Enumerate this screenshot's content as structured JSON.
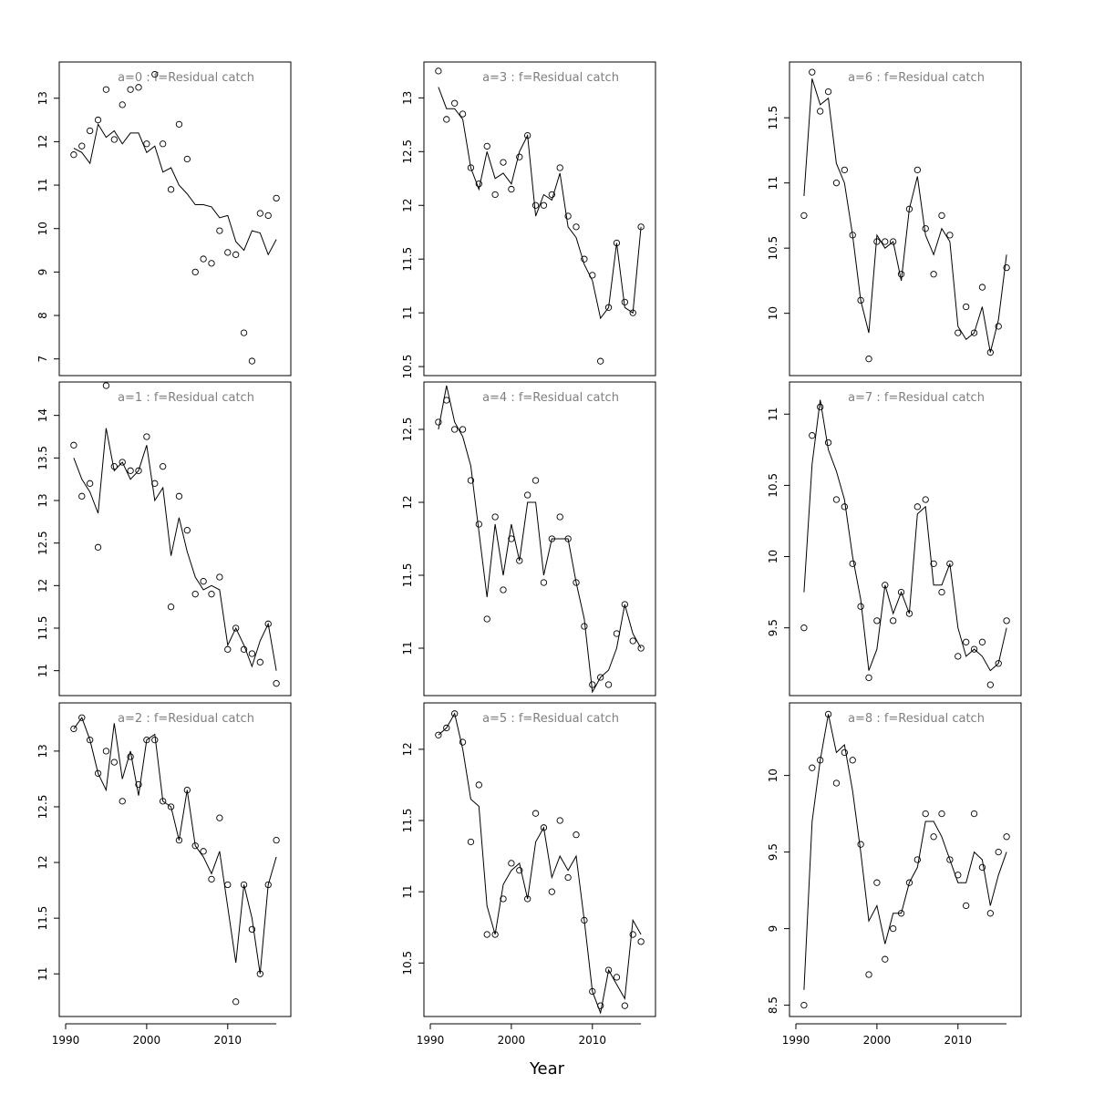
{
  "figure": {
    "xlabel": "Year"
  },
  "chart_data": [
    {
      "type": "line",
      "title": "a=0  :  f=Residual catch",
      "x": [
        1991,
        1992,
        1993,
        1994,
        1995,
        1996,
        1997,
        1998,
        1999,
        2000,
        2001,
        2002,
        2003,
        2004,
        2005,
        2006,
        2007,
        2008,
        2009,
        2010,
        2011,
        2012,
        2013,
        2014,
        2015,
        2016
      ],
      "series": [
        {
          "kind": "line",
          "values": [
            11.85,
            11.75,
            11.5,
            12.4,
            12.1,
            12.25,
            11.95,
            12.2,
            12.2,
            11.75,
            11.9,
            11.3,
            11.4,
            11.0,
            10.8,
            10.55,
            10.55,
            10.5,
            10.25,
            10.3,
            9.7,
            9.5,
            9.95,
            9.9,
            9.4,
            9.75
          ]
        },
        {
          "kind": "points",
          "values": [
            11.7,
            11.9,
            12.25,
            12.5,
            13.2,
            12.05,
            12.85,
            13.2,
            13.25,
            11.95,
            13.55,
            11.95,
            10.9,
            12.4,
            11.6,
            9.0,
            9.3,
            9.2,
            9.95,
            9.45,
            9.4,
            7.6,
            6.95,
            10.35,
            10.3,
            10.7
          ]
        }
      ],
      "ylim": [
        6.7,
        13.75
      ],
      "yticks": [
        7,
        8,
        9,
        10,
        11,
        12,
        13
      ]
    },
    {
      "type": "line",
      "title": "a=1  :  f=Residual catch",
      "x": [
        1991,
        1992,
        1993,
        1994,
        1995,
        1996,
        1997,
        1998,
        1999,
        2000,
        2001,
        2002,
        2003,
        2004,
        2005,
        2006,
        2007,
        2008,
        2009,
        2010,
        2011,
        2012,
        2013,
        2014,
        2015,
        2016
      ],
      "series": [
        {
          "kind": "line",
          "values": [
            13.5,
            13.25,
            13.1,
            12.85,
            13.85,
            13.35,
            13.45,
            13.25,
            13.35,
            13.65,
            13.0,
            13.15,
            12.35,
            12.8,
            12.4,
            12.1,
            11.95,
            12.0,
            11.95,
            11.3,
            11.5,
            11.3,
            11.05,
            11.35,
            11.55,
            11.0
          ]
        },
        {
          "kind": "points",
          "values": [
            13.65,
            13.05,
            13.2,
            12.45,
            14.35,
            13.4,
            13.45,
            13.35,
            13.35,
            13.75,
            13.2,
            13.4,
            11.75,
            13.05,
            12.65,
            11.9,
            12.05,
            11.9,
            12.1,
            11.25,
            11.5,
            11.25,
            11.2,
            11.1,
            11.55,
            10.85
          ]
        }
      ],
      "ylim": [
        10.75,
        14.35
      ],
      "yticks": [
        11.0,
        11.5,
        12.0,
        12.5,
        13.0,
        13.5,
        14.0
      ]
    },
    {
      "type": "line",
      "title": "a=2  :  f=Residual catch",
      "x": [
        1991,
        1992,
        1993,
        1994,
        1995,
        1996,
        1997,
        1998,
        1999,
        2000,
        2001,
        2002,
        2003,
        2004,
        2005,
        2006,
        2007,
        2008,
        2009,
        2010,
        2011,
        2012,
        2013,
        2014,
        2015,
        2016
      ],
      "series": [
        {
          "kind": "line",
          "values": [
            13.2,
            13.3,
            13.1,
            12.8,
            12.65,
            13.25,
            12.75,
            13.0,
            12.6,
            13.1,
            13.15,
            12.55,
            12.5,
            12.2,
            12.65,
            12.15,
            12.05,
            11.9,
            12.1,
            11.6,
            11.1,
            11.8,
            11.5,
            11.0,
            11.8,
            12.05
          ]
        },
        {
          "kind": "points",
          "values": [
            13.2,
            13.3,
            13.1,
            12.8,
            13.0,
            12.9,
            12.55,
            12.95,
            12.7,
            13.1,
            13.1,
            12.55,
            12.5,
            12.2,
            12.65,
            12.15,
            12.1,
            11.85,
            12.4,
            11.8,
            10.75,
            11.8,
            11.4,
            11.0,
            11.8,
            12.2
          ]
        }
      ],
      "ylim": [
        10.65,
        13.4
      ],
      "yticks": [
        11.0,
        11.5,
        12.0,
        12.5,
        13.0
      ]
    },
    {
      "type": "line",
      "title": "a=3  :  f=Residual catch",
      "x": [
        1991,
        1992,
        1993,
        1994,
        1995,
        1996,
        1997,
        1998,
        1999,
        2000,
        2001,
        2002,
        2003,
        2004,
        2005,
        2006,
        2007,
        2008,
        2009,
        2010,
        2011,
        2012,
        2013,
        2014,
        2015,
        2016
      ],
      "series": [
        {
          "kind": "line",
          "values": [
            13.1,
            12.9,
            12.9,
            12.8,
            12.35,
            12.15,
            12.5,
            12.25,
            12.3,
            12.2,
            12.5,
            12.65,
            11.9,
            12.1,
            12.05,
            12.3,
            11.8,
            11.7,
            11.45,
            11.3,
            10.95,
            11.05,
            11.65,
            11.05,
            11.0,
            11.8
          ]
        },
        {
          "kind": "points",
          "values": [
            13.25,
            12.8,
            12.95,
            12.85,
            12.35,
            12.2,
            12.55,
            12.1,
            12.4,
            12.15,
            12.45,
            12.65,
            12.0,
            12.0,
            12.1,
            12.35,
            11.9,
            11.8,
            11.5,
            11.35,
            10.55,
            11.05,
            11.65,
            11.1,
            11.0,
            11.8
          ]
        }
      ],
      "ylim": [
        10.45,
        13.3
      ],
      "yticks": [
        10.5,
        11.0,
        11.5,
        12.0,
        12.5,
        13.0
      ]
    },
    {
      "type": "line",
      "title": "a=4  :  f=Residual catch",
      "x": [
        1991,
        1992,
        1993,
        1994,
        1995,
        1996,
        1997,
        1998,
        1999,
        2000,
        2001,
        2002,
        2003,
        2004,
        2005,
        2006,
        2007,
        2008,
        2009,
        2010,
        2011,
        2012,
        2013,
        2014,
        2015,
        2016
      ],
      "series": [
        {
          "kind": "line",
          "values": [
            12.5,
            12.8,
            12.55,
            12.45,
            12.25,
            11.8,
            11.35,
            11.85,
            11.5,
            11.85,
            11.6,
            12.0,
            12.0,
            11.5,
            11.75,
            11.75,
            11.75,
            11.45,
            11.2,
            10.7,
            10.8,
            10.85,
            11.0,
            11.3,
            11.1,
            11.0
          ]
        },
        {
          "kind": "points",
          "values": [
            12.55,
            12.7,
            12.5,
            12.5,
            12.15,
            11.85,
            11.2,
            11.9,
            11.4,
            11.75,
            11.6,
            12.05,
            12.15,
            11.45,
            11.75,
            11.9,
            11.75,
            11.45,
            11.15,
            10.75,
            10.8,
            10.75,
            11.1,
            11.3,
            11.05,
            11.0
          ]
        }
      ],
      "ylim": [
        10.7,
        12.8
      ],
      "yticks": [
        11.0,
        11.5,
        12.0,
        12.5
      ]
    },
    {
      "type": "line",
      "title": "a=5  :  f=Residual catch",
      "x": [
        1991,
        1992,
        1993,
        1994,
        1995,
        1996,
        1997,
        1998,
        1999,
        2000,
        2001,
        2002,
        2003,
        2004,
        2005,
        2006,
        2007,
        2008,
        2009,
        2010,
        2011,
        2012,
        2013,
        2014,
        2015,
        2016
      ],
      "series": [
        {
          "kind": "line",
          "values": [
            12.1,
            12.15,
            12.25,
            12.0,
            11.65,
            11.6,
            10.9,
            10.7,
            11.05,
            11.15,
            11.2,
            10.95,
            11.35,
            11.45,
            11.1,
            11.25,
            11.15,
            11.25,
            10.8,
            10.3,
            10.15,
            10.45,
            10.35,
            10.25,
            10.8,
            10.7
          ]
        },
        {
          "kind": "points",
          "values": [
            12.1,
            12.15,
            12.25,
            12.05,
            11.35,
            11.75,
            10.7,
            10.7,
            10.95,
            11.2,
            11.15,
            10.95,
            11.55,
            11.45,
            11.0,
            11.5,
            11.1,
            11.4,
            10.8,
            10.3,
            10.2,
            10.45,
            10.4,
            10.2,
            10.7,
            10.65
          ]
        }
      ],
      "ylim": [
        10.15,
        12.3
      ],
      "yticks": [
        10.5,
        11.0,
        11.5,
        12.0
      ]
    },
    {
      "type": "line",
      "title": "a=6  :  f=Residual catch",
      "x": [
        1991,
        1992,
        1993,
        1994,
        1995,
        1996,
        1997,
        1998,
        1999,
        2000,
        2001,
        2002,
        2003,
        2004,
        2005,
        2006,
        2007,
        2008,
        2009,
        2010,
        2011,
        2012,
        2013,
        2014,
        2015,
        2016
      ],
      "series": [
        {
          "kind": "line",
          "values": [
            10.9,
            11.8,
            11.6,
            11.65,
            11.15,
            11.0,
            10.6,
            10.1,
            9.85,
            10.6,
            10.5,
            10.55,
            10.25,
            10.8,
            11.05,
            10.6,
            10.45,
            10.65,
            10.55,
            9.9,
            9.8,
            9.85,
            10.05,
            9.7,
            9.95,
            10.45
          ]
        },
        {
          "kind": "points",
          "values": [
            10.75,
            11.85,
            11.55,
            11.7,
            11.0,
            11.1,
            10.6,
            10.1,
            9.65,
            10.55,
            10.55,
            10.55,
            10.3,
            10.8,
            11.1,
            10.65,
            10.3,
            10.75,
            10.6,
            9.85,
            10.05,
            9.85,
            10.2,
            9.7,
            9.9,
            10.35
          ]
        }
      ],
      "ylim": [
        9.55,
        11.9
      ],
      "yticks": [
        10.0,
        10.5,
        11.0,
        11.5
      ]
    },
    {
      "type": "line",
      "title": "a=7  :  f=Residual catch",
      "x": [
        1991,
        1992,
        1993,
        1994,
        1995,
        1996,
        1997,
        1998,
        1999,
        2000,
        2001,
        2002,
        2003,
        2004,
        2005,
        2006,
        2007,
        2008,
        2009,
        2010,
        2011,
        2012,
        2013,
        2014,
        2015,
        2016
      ],
      "series": [
        {
          "kind": "line",
          "values": [
            9.75,
            10.65,
            11.1,
            10.75,
            10.6,
            10.4,
            10.0,
            9.7,
            9.2,
            9.35,
            9.8,
            9.6,
            9.75,
            9.6,
            10.3,
            10.35,
            9.8,
            9.8,
            9.95,
            9.5,
            9.3,
            9.35,
            9.3,
            9.2,
            9.25,
            9.5
          ]
        },
        {
          "kind": "points",
          "values": [
            9.5,
            10.85,
            11.05,
            10.8,
            10.4,
            10.35,
            9.95,
            9.65,
            9.15,
            9.55,
            9.8,
            9.55,
            9.75,
            9.6,
            10.35,
            10.4,
            9.95,
            9.75,
            9.95,
            9.3,
            9.4,
            9.35,
            9.4,
            9.1,
            9.25,
            9.55
          ]
        }
      ],
      "ylim": [
        9.05,
        11.2
      ],
      "yticks": [
        9.5,
        10.0,
        10.5,
        11.0
      ]
    },
    {
      "type": "line",
      "title": "a=8  :  f=Residual catch",
      "x": [
        1991,
        1992,
        1993,
        1994,
        1995,
        1996,
        1997,
        1998,
        1999,
        2000,
        2001,
        2002,
        2003,
        2004,
        2005,
        2006,
        2007,
        2008,
        2009,
        2010,
        2011,
        2012,
        2013,
        2014,
        2015,
        2016
      ],
      "series": [
        {
          "kind": "line",
          "values": [
            8.6,
            9.7,
            10.1,
            10.4,
            10.15,
            10.2,
            9.9,
            9.5,
            9.05,
            9.15,
            8.9,
            9.1,
            9.1,
            9.3,
            9.4,
            9.7,
            9.7,
            9.6,
            9.45,
            9.3,
            9.3,
            9.5,
            9.45,
            9.15,
            9.35,
            9.5
          ]
        },
        {
          "kind": "points",
          "values": [
            8.5,
            10.05,
            10.1,
            10.4,
            9.95,
            10.15,
            10.1,
            9.55,
            8.7,
            9.3,
            8.8,
            9.0,
            9.1,
            9.3,
            9.45,
            9.75,
            9.6,
            9.75,
            9.45,
            9.35,
            9.15,
            9.75,
            9.4,
            9.1,
            9.5,
            9.6
          ]
        }
      ],
      "ylim": [
        8.45,
        10.45
      ],
      "yticks": [
        8.5,
        9.0,
        9.5,
        10.0
      ]
    }
  ],
  "xaxis": {
    "range": [
      1990,
      2017
    ],
    "ticks": [
      1990,
      2000,
      2010
    ]
  }
}
